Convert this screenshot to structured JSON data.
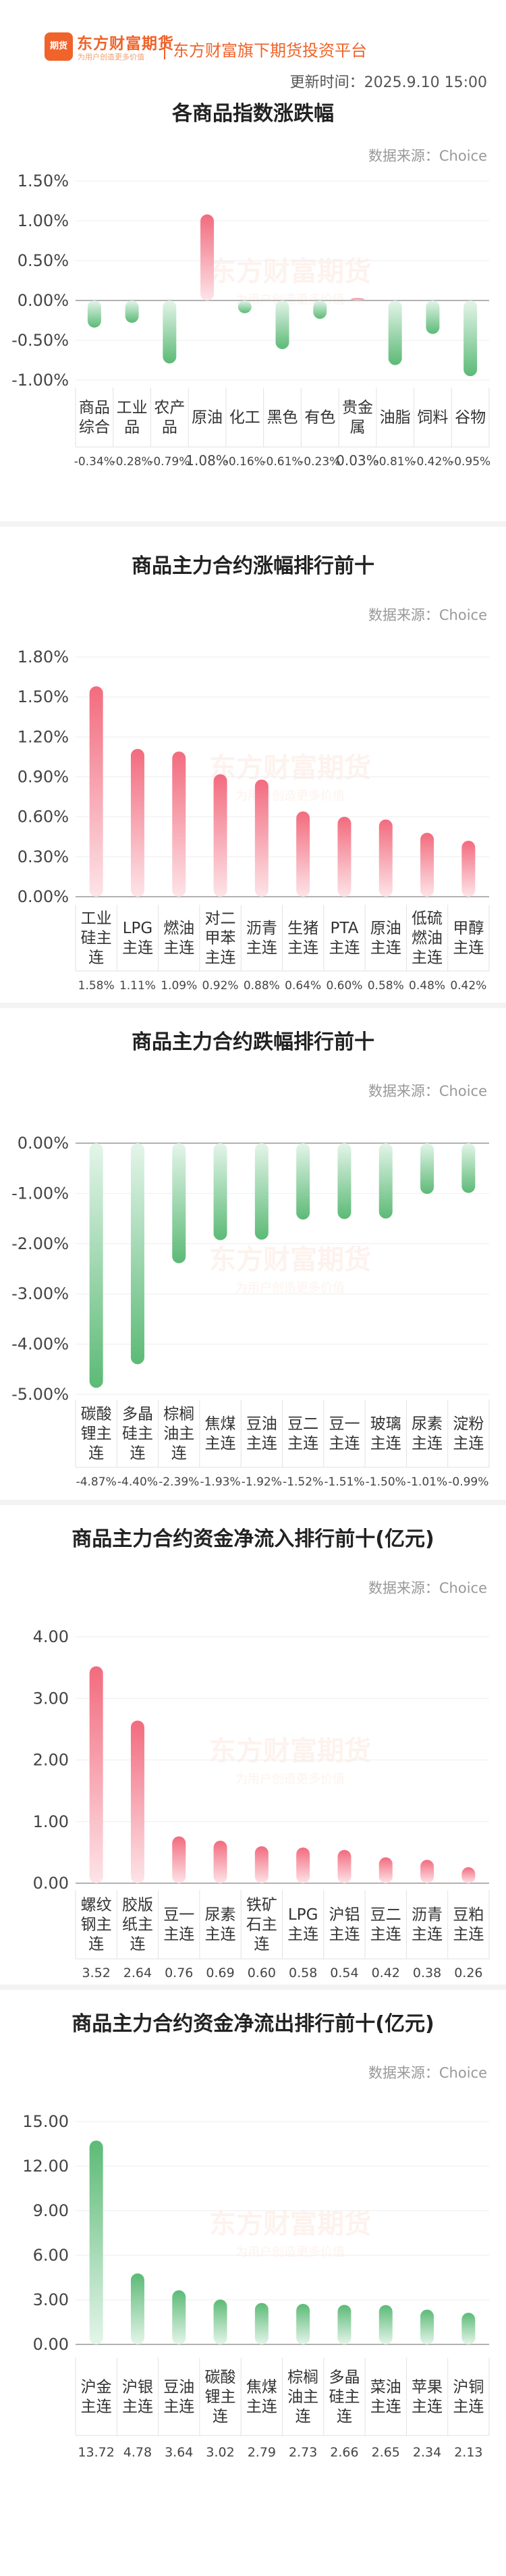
{
  "header": {
    "brand": "东方财富期货",
    "brand_sub": "为用户创造更多价值",
    "platform": "东方财富旗下期货投资平台",
    "updated": "更新时间：2025.9.10 15:00",
    "logo_glyph": "期货"
  },
  "watermark": {
    "main": "东方财富期货",
    "sub": "为用户创造更多价值"
  },
  "source_label": "数据来源：Choice",
  "colors": {
    "up": "#f26b7e",
    "up_light": "#fde4e8",
    "down": "#5cba76",
    "down_light": "#e4f5ea",
    "brand": "#f0632a"
  },
  "charts": [
    {
      "title": "各商品指数涨跌幅",
      "chart_data": {
        "type": "bar",
        "categories": [
          [
            "商品",
            "综合"
          ],
          [
            "工业",
            "品"
          ],
          [
            "农产",
            "品"
          ],
          [
            "原油"
          ],
          [
            "化工"
          ],
          [
            "黑色"
          ],
          [
            "有色"
          ],
          [
            "贵金",
            "属"
          ],
          [
            "油脂"
          ],
          [
            "饲料"
          ],
          [
            "谷物"
          ]
        ],
        "values": [
          -0.34,
          -0.28,
          -0.79,
          1.08,
          -0.16,
          -0.61,
          -0.23,
          0.03,
          -0.81,
          -0.42,
          -0.95
        ],
        "value_labels": [
          "-0.34%",
          "-0.28%",
          "-0.79%",
          "1.08%",
          "-0.16%",
          "-0.61%",
          "-0.23%",
          "0.03%",
          "-0.81%",
          "-0.42%",
          "-0.95%"
        ],
        "yticks": [
          "1.50%",
          "1.00%",
          "0.50%",
          "0.00%",
          "-0.50%",
          "-1.00%"
        ],
        "ylim": [
          -1.0,
          1.5
        ]
      }
    },
    {
      "title": "商品主力合约涨幅排行前十",
      "chart_data": {
        "type": "bar",
        "categories": [
          [
            "工业",
            "硅主",
            "连"
          ],
          [
            "LPG",
            "主连"
          ],
          [
            "燃油",
            "主连"
          ],
          [
            "对二",
            "甲苯",
            "主连"
          ],
          [
            "沥青",
            "主连"
          ],
          [
            "生猪",
            "主连"
          ],
          [
            "PTA",
            "主连"
          ],
          [
            "原油",
            "主连"
          ],
          [
            "低硫",
            "燃油",
            "主连"
          ],
          [
            "甲醇",
            "主连"
          ]
        ],
        "values": [
          1.58,
          1.11,
          1.09,
          0.92,
          0.88,
          0.64,
          0.6,
          0.58,
          0.48,
          0.42
        ],
        "value_labels": [
          "1.58%",
          "1.11%",
          "1.09%",
          "0.92%",
          "0.88%",
          "0.64%",
          "0.60%",
          "0.58%",
          "0.48%",
          "0.42%"
        ],
        "yticks": [
          "1.80%",
          "1.50%",
          "1.20%",
          "0.90%",
          "0.60%",
          "0.30%",
          "0.00%"
        ],
        "ylim": [
          0,
          1.8
        ]
      }
    },
    {
      "title": "商品主力合约跌幅排行前十",
      "chart_data": {
        "type": "bar",
        "categories": [
          [
            "碳酸",
            "锂主",
            "连"
          ],
          [
            "多晶",
            "硅主",
            "连"
          ],
          [
            "棕榈",
            "油主",
            "连"
          ],
          [
            "焦煤",
            "主连"
          ],
          [
            "豆油",
            "主连"
          ],
          [
            "豆二",
            "主连"
          ],
          [
            "豆一",
            "主连"
          ],
          [
            "玻璃",
            "主连"
          ],
          [
            "尿素",
            "主连"
          ],
          [
            "淀粉",
            "主连"
          ]
        ],
        "values": [
          -4.87,
          -4.4,
          -2.39,
          -1.93,
          -1.92,
          -1.52,
          -1.51,
          -1.5,
          -1.01,
          -0.99
        ],
        "value_labels": [
          "-4.87%",
          "-4.40%",
          "-2.39%",
          "-1.93%",
          "-1.92%",
          "-1.52%",
          "-1.51%",
          "-1.50%",
          "-1.01%",
          "-0.99%"
        ],
        "yticks": [
          "0.00%",
          "-1.00%",
          "-2.00%",
          "-3.00%",
          "-4.00%",
          "-5.00%"
        ],
        "ylim": [
          -5.0,
          0
        ]
      }
    },
    {
      "title": "商品主力合约资金净流入排行前十(亿元)",
      "chart_data": {
        "type": "bar",
        "categories": [
          [
            "螺纹",
            "钢主",
            "连"
          ],
          [
            "胶版",
            "纸主",
            "连"
          ],
          [
            "豆一",
            "主连"
          ],
          [
            "尿素",
            "主连"
          ],
          [
            "铁矿",
            "石主",
            "连"
          ],
          [
            "LPG",
            "主连"
          ],
          [
            "沪铝",
            "主连"
          ],
          [
            "豆二",
            "主连"
          ],
          [
            "沥青",
            "主连"
          ],
          [
            "豆粕",
            "主连"
          ]
        ],
        "values": [
          3.52,
          2.64,
          0.76,
          0.69,
          0.6,
          0.58,
          0.54,
          0.42,
          0.38,
          0.26
        ],
        "value_labels": [
          "3.52",
          "2.64",
          "0.76",
          "0.69",
          "0.60",
          "0.58",
          "0.54",
          "0.42",
          "0.38",
          "0.26"
        ],
        "yticks": [
          "4.00",
          "3.00",
          "2.00",
          "1.00",
          "0.00"
        ],
        "ylim": [
          0,
          4.0
        ]
      }
    },
    {
      "title": "商品主力合约资金净流出排行前十(亿元)",
      "chart_data": {
        "type": "bar",
        "categories": [
          [
            "沪金",
            "主连"
          ],
          [
            "沪银",
            "主连"
          ],
          [
            "豆油",
            "主连"
          ],
          [
            "碳酸",
            "锂主",
            "连"
          ],
          [
            "焦煤",
            "主连"
          ],
          [
            "棕榈",
            "油主",
            "连"
          ],
          [
            "多晶",
            "硅主",
            "连"
          ],
          [
            "菜油",
            "主连"
          ],
          [
            "苹果",
            "主连"
          ],
          [
            "沪铜",
            "主连"
          ]
        ],
        "values": [
          13.72,
          4.78,
          3.64,
          3.02,
          2.79,
          2.73,
          2.66,
          2.65,
          2.34,
          2.13
        ],
        "value_labels": [
          "13.72",
          "4.78",
          "3.64",
          "3.02",
          "2.79",
          "2.73",
          "2.66",
          "2.65",
          "2.34",
          "2.13"
        ],
        "yticks": [
          "15.00",
          "12.00",
          "9.00",
          "6.00",
          "3.00",
          "0.00"
        ],
        "ylim": [
          0,
          15.0
        ]
      }
    }
  ]
}
